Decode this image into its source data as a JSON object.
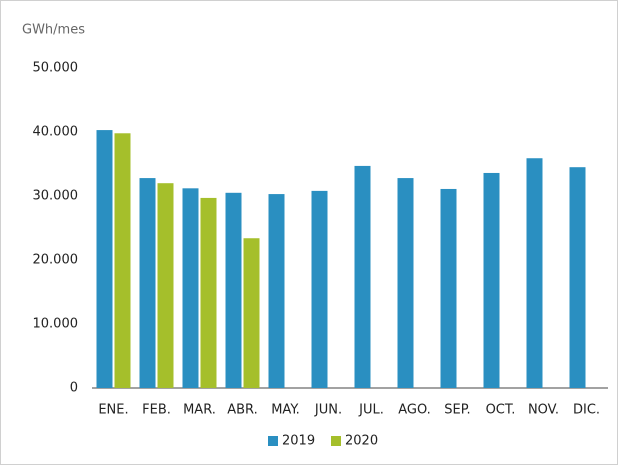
{
  "chart_data": {
    "type": "bar",
    "y_axis_label": "GWh/mes",
    "categories": [
      "ENE.",
      "FEB.",
      "MAR.",
      "ABR.",
      "MAY.",
      "JUN.",
      "JUL.",
      "AGO.",
      "SEP.",
      "OCT.",
      "NOV.",
      "DIC."
    ],
    "series": [
      {
        "name": "2019",
        "color": "#2a8fc1",
        "values": [
          40300,
          32800,
          31200,
          30500,
          30300,
          30800,
          34700,
          32800,
          31100,
          33600,
          35900,
          34500
        ]
      },
      {
        "name": "2020",
        "color": "#a5bf2b",
        "values": [
          39800,
          32000,
          29700,
          23400,
          null,
          null,
          null,
          null,
          null,
          null,
          null,
          null
        ]
      }
    ],
    "ylim": [
      0,
      50000
    ],
    "yticks": [
      0,
      {
        "value": 10000,
        "label": "10.000"
      },
      {
        "value": 20000,
        "label": "20.000"
      },
      {
        "value": 30000,
        "label": "30.000"
      },
      {
        "value": 40000,
        "label": "40.000"
      },
      {
        "value": 50000,
        "label": "50.000"
      }
    ],
    "grid": false,
    "legend": "bottom"
  }
}
